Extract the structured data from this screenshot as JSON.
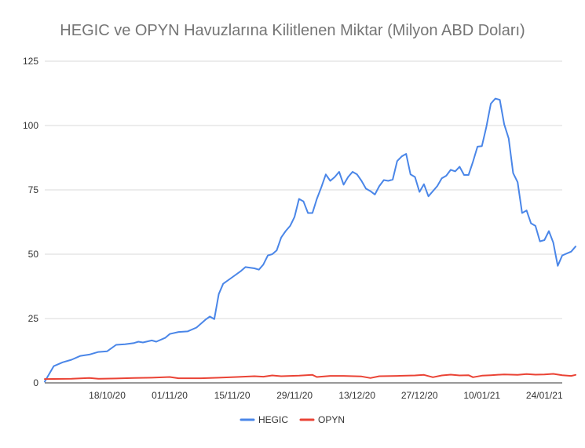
{
  "chart_data": {
    "type": "line",
    "title": "HEGIC ve OPYN Havuzlarına Kilitlenen Miktar (Milyon ABD Doları)",
    "xlabel": "",
    "ylabel": "",
    "ylim": [
      0,
      125
    ],
    "y_ticks": [
      0,
      25,
      50,
      75,
      100,
      125
    ],
    "x_tick_labels": [
      "18/10/20",
      "01/11/20",
      "15/11/20",
      "29/11/20",
      "13/12/20",
      "27/12/20",
      "10/01/21",
      "24/01/21"
    ],
    "x_tick_dates": [
      "2020-10-18",
      "2020-11-01",
      "2020-11-15",
      "2020-11-29",
      "2020-12-13",
      "2020-12-27",
      "2021-01-10",
      "2021-01-24"
    ],
    "x_range": [
      "2020-10-04",
      "2021-01-28"
    ],
    "grid": true,
    "legend_position": "bottom",
    "series": [
      {
        "name": "HEGIC",
        "color": "#4a86e8",
        "points": [
          [
            "2020-10-04",
            0.5
          ],
          [
            "2020-10-06",
            6.5
          ],
          [
            "2020-10-08",
            8
          ],
          [
            "2020-10-10",
            9
          ],
          [
            "2020-10-12",
            10.5
          ],
          [
            "2020-10-14",
            11
          ],
          [
            "2020-10-16",
            12
          ],
          [
            "2020-10-18",
            12.3
          ],
          [
            "2020-10-20",
            14.8
          ],
          [
            "2020-10-22",
            15
          ],
          [
            "2020-10-24",
            15.5
          ],
          [
            "2020-10-25",
            16
          ],
          [
            "2020-10-26",
            15.7
          ],
          [
            "2020-10-28",
            16.5
          ],
          [
            "2020-10-29",
            16
          ],
          [
            "2020-10-31",
            17.5
          ],
          [
            "2020-11-01",
            19
          ],
          [
            "2020-11-03",
            19.8
          ],
          [
            "2020-11-05",
            20
          ],
          [
            "2020-11-07",
            21.5
          ],
          [
            "2020-11-09",
            24.5
          ],
          [
            "2020-11-10",
            25.8
          ],
          [
            "2020-11-11",
            24.8
          ],
          [
            "2020-11-12",
            34.5
          ],
          [
            "2020-11-13",
            38.5
          ],
          [
            "2020-11-15",
            41
          ],
          [
            "2020-11-17",
            43.5
          ],
          [
            "2020-11-18",
            45
          ],
          [
            "2020-11-20",
            44.5
          ],
          [
            "2020-11-21",
            44
          ],
          [
            "2020-11-22",
            46
          ],
          [
            "2020-11-23",
            49.5
          ],
          [
            "2020-11-24",
            50
          ],
          [
            "2020-11-25",
            51.5
          ],
          [
            "2020-11-26",
            56.5
          ],
          [
            "2020-11-27",
            59
          ],
          [
            "2020-11-28",
            61
          ],
          [
            "2020-11-29",
            64.5
          ],
          [
            "2020-11-30",
            71.5
          ],
          [
            "2020-12-01",
            70.5
          ],
          [
            "2020-12-02",
            66
          ],
          [
            "2020-12-03",
            66
          ],
          [
            "2020-12-04",
            71.5
          ],
          [
            "2020-12-05",
            76
          ],
          [
            "2020-12-06",
            81
          ],
          [
            "2020-12-07",
            78.5
          ],
          [
            "2020-12-08",
            80
          ],
          [
            "2020-12-09",
            82
          ],
          [
            "2020-12-10",
            77
          ],
          [
            "2020-12-11",
            80
          ],
          [
            "2020-12-12",
            82
          ],
          [
            "2020-12-13",
            81
          ],
          [
            "2020-12-14",
            78.5
          ],
          [
            "2020-12-15",
            75.5
          ],
          [
            "2020-12-16",
            74.5
          ],
          [
            "2020-12-17",
            73.2
          ],
          [
            "2020-12-18",
            76.5
          ],
          [
            "2020-12-19",
            78.8
          ],
          [
            "2020-12-20",
            78.5
          ],
          [
            "2020-12-21",
            79
          ],
          [
            "2020-12-22",
            86.2
          ],
          [
            "2020-12-23",
            88
          ],
          [
            "2020-12-24",
            89
          ],
          [
            "2020-12-25",
            81
          ],
          [
            "2020-12-26",
            80
          ],
          [
            "2020-12-27",
            74.2
          ],
          [
            "2020-12-28",
            77.2
          ],
          [
            "2020-12-29",
            72.5
          ],
          [
            "2020-12-30",
            74.5
          ],
          [
            "2020-12-31",
            76.5
          ],
          [
            "2021-01-01",
            79.5
          ],
          [
            "2021-01-02",
            80.5
          ],
          [
            "2021-01-03",
            82.8
          ],
          [
            "2021-01-04",
            82.2
          ],
          [
            "2021-01-05",
            84
          ],
          [
            "2021-01-06",
            80.8
          ],
          [
            "2021-01-07",
            80.8
          ],
          [
            "2021-01-08",
            86
          ],
          [
            "2021-01-09",
            91.8
          ],
          [
            "2021-01-10",
            92
          ],
          [
            "2021-01-11",
            99.5
          ],
          [
            "2021-01-12",
            108.5
          ],
          [
            "2021-01-13",
            110.5
          ],
          [
            "2021-01-14",
            110
          ],
          [
            "2021-01-15",
            100.5
          ],
          [
            "2021-01-16",
            95
          ],
          [
            "2021-01-17",
            81.5
          ],
          [
            "2021-01-18",
            78
          ],
          [
            "2021-01-19",
            66
          ],
          [
            "2021-01-20",
            67
          ],
          [
            "2021-01-21",
            62
          ],
          [
            "2021-01-22",
            61
          ],
          [
            "2021-01-23",
            55
          ],
          [
            "2021-01-24",
            55.5
          ],
          [
            "2021-01-25",
            59
          ],
          [
            "2021-01-26",
            54.5
          ],
          [
            "2021-01-27",
            45.5
          ],
          [
            "2021-01-28",
            49.5
          ],
          [
            "2021-01-30",
            51
          ],
          [
            "2021-01-31",
            53
          ]
        ]
      },
      {
        "name": "OPYN",
        "color": "#ea4335",
        "points": [
          [
            "2020-10-04",
            1.5
          ],
          [
            "2020-10-10",
            1.6
          ],
          [
            "2020-10-14",
            1.9
          ],
          [
            "2020-10-16",
            1.6
          ],
          [
            "2020-10-20",
            1.7
          ],
          [
            "2020-10-24",
            1.9
          ],
          [
            "2020-10-28",
            2.0
          ],
          [
            "2020-11-01",
            2.3
          ],
          [
            "2020-11-03",
            1.8
          ],
          [
            "2020-11-08",
            1.8
          ],
          [
            "2020-11-12",
            2.0
          ],
          [
            "2020-11-16",
            2.3
          ],
          [
            "2020-11-20",
            2.6
          ],
          [
            "2020-11-22",
            2.4
          ],
          [
            "2020-11-24",
            2.9
          ],
          [
            "2020-11-26",
            2.6
          ],
          [
            "2020-11-30",
            2.8
          ],
          [
            "2020-12-03",
            3.1
          ],
          [
            "2020-12-04",
            2.3
          ],
          [
            "2020-12-07",
            2.7
          ],
          [
            "2020-12-10",
            2.7
          ],
          [
            "2020-12-14",
            2.5
          ],
          [
            "2020-12-16",
            1.9
          ],
          [
            "2020-12-18",
            2.6
          ],
          [
            "2020-12-22",
            2.7
          ],
          [
            "2020-12-26",
            2.9
          ],
          [
            "2020-12-28",
            3.1
          ],
          [
            "2020-12-30",
            2.2
          ],
          [
            "2021-01-01",
            2.9
          ],
          [
            "2021-01-03",
            3.2
          ],
          [
            "2021-01-05",
            2.9
          ],
          [
            "2021-01-07",
            3.0
          ],
          [
            "2021-01-08",
            2.2
          ],
          [
            "2021-01-10",
            2.8
          ],
          [
            "2021-01-12",
            3.0
          ],
          [
            "2021-01-15",
            3.3
          ],
          [
            "2021-01-18",
            3.1
          ],
          [
            "2021-01-20",
            3.4
          ],
          [
            "2021-01-22",
            3.2
          ],
          [
            "2021-01-24",
            3.3
          ],
          [
            "2021-01-26",
            3.5
          ],
          [
            "2021-01-28",
            3.0
          ],
          [
            "2021-01-30",
            2.7
          ],
          [
            "2021-01-31",
            3.1
          ]
        ]
      }
    ]
  }
}
